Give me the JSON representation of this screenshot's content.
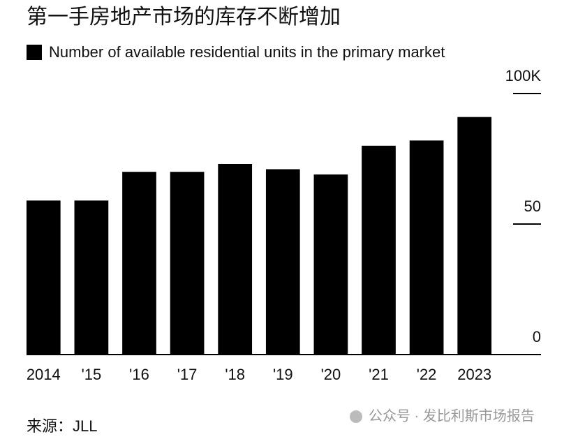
{
  "chart_data": {
    "type": "bar",
    "title": "第一手房地产市场的库存不断增加",
    "categories": [
      "2014",
      "'15",
      "'16",
      "'17",
      "'18",
      "'19",
      "'20",
      "'21",
      "'22",
      "2023"
    ],
    "series": [
      {
        "name": "Number of available residential units in the primary market",
        "color": "#000000",
        "values": [
          59,
          59,
          70,
          70,
          73,
          71,
          69,
          80,
          82,
          91
        ]
      }
    ],
    "ylim": [
      0,
      100
    ],
    "yticks": [
      0,
      50,
      {
        "value": 100,
        "label": "100K"
      }
    ],
    "source": "来源：JLL",
    "watermark": "公众号 · 发比利斯市场报告"
  }
}
